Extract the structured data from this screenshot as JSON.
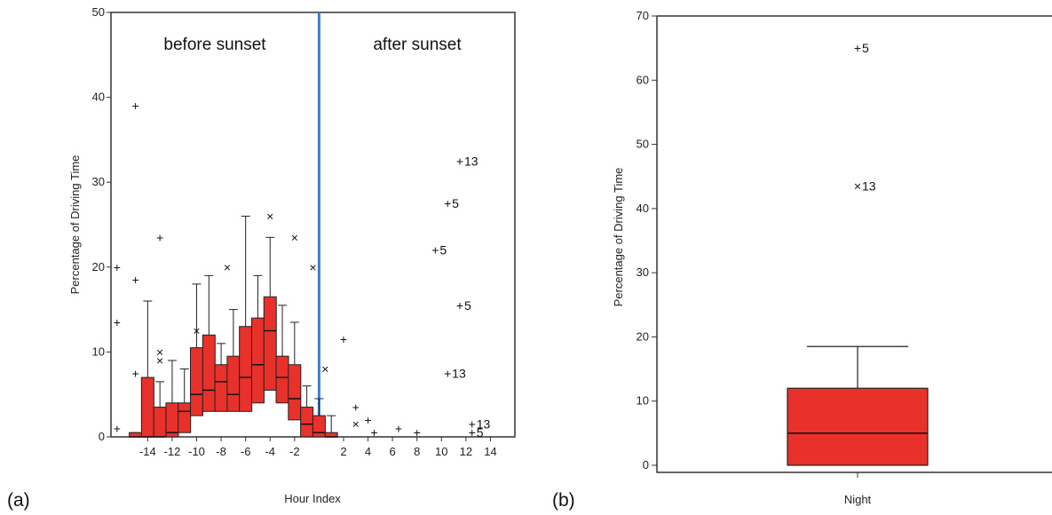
{
  "colors": {
    "box_fill": "#e8312a",
    "divider": "#3b7fd0",
    "ink": "#111111"
  },
  "panels": {
    "a": "(a)",
    "b": "(b)"
  },
  "chart_data": [
    {
      "type": "box",
      "xlabel": "Hour Index",
      "ylabel": "Percentage of Driving Time",
      "ylim": [
        0,
        50
      ],
      "yticks": [
        0,
        10,
        20,
        30,
        40,
        50
      ],
      "xlim": [
        -17,
        16
      ],
      "xticks": [
        -14,
        -12,
        -10,
        -8,
        -6,
        -4,
        -2,
        2,
        4,
        6,
        8,
        10,
        12,
        14
      ],
      "divider_x": 0,
      "regions": [
        "before sunset",
        "after sunset"
      ],
      "boxes": [
        {
          "x": -15,
          "q1": 0,
          "med": 0,
          "q3": 0.5,
          "wlo": 0,
          "whi": 0.5
        },
        {
          "x": -14,
          "q1": 0,
          "med": 0,
          "q3": 7,
          "wlo": 0,
          "whi": 16
        },
        {
          "x": -13,
          "q1": 0,
          "med": 0,
          "q3": 3.5,
          "wlo": 0,
          "whi": 6.5
        },
        {
          "x": -12,
          "q1": 0,
          "med": 0.5,
          "q3": 4,
          "wlo": 0,
          "whi": 9
        },
        {
          "x": -11,
          "q1": 0.5,
          "med": 3,
          "q3": 4,
          "wlo": 0,
          "whi": 8
        },
        {
          "x": -10,
          "q1": 2.5,
          "med": 5,
          "q3": 10.5,
          "wlo": 0,
          "whi": 18
        },
        {
          "x": -9,
          "q1": 3,
          "med": 5.5,
          "q3": 12,
          "wlo": 0,
          "whi": 19
        },
        {
          "x": -8,
          "q1": 3,
          "med": 6.5,
          "q3": 8.5,
          "wlo": 0,
          "whi": 11
        },
        {
          "x": -7,
          "q1": 3,
          "med": 5,
          "q3": 9.5,
          "wlo": 0,
          "whi": 15
        },
        {
          "x": -6,
          "q1": 3,
          "med": 7,
          "q3": 13,
          "wlo": 0,
          "whi": 26
        },
        {
          "x": -5,
          "q1": 4,
          "med": 8.5,
          "q3": 14,
          "wlo": 0,
          "whi": 19
        },
        {
          "x": -4,
          "q1": 5.5,
          "med": 12.5,
          "q3": 16.5,
          "wlo": 0,
          "whi": 23.5
        },
        {
          "x": -3,
          "q1": 4,
          "med": 7,
          "q3": 9.5,
          "wlo": 0,
          "whi": 15.5
        },
        {
          "x": -2,
          "q1": 2,
          "med": 4.5,
          "q3": 8.5,
          "wlo": 0,
          "whi": 13.5
        },
        {
          "x": -1,
          "q1": 0,
          "med": 1.5,
          "q3": 3.5,
          "wlo": 0,
          "whi": 6
        },
        {
          "x": 0,
          "q1": 0,
          "med": 0.5,
          "q3": 2.5,
          "wlo": 0,
          "whi": 4.5
        },
        {
          "x": 1,
          "q1": 0,
          "med": 0,
          "q3": 0.5,
          "wlo": 0,
          "whi": 2.5
        }
      ],
      "outliers": [
        {
          "x": -16.5,
          "y": 20,
          "m": "+",
          "t": ""
        },
        {
          "x": -16.5,
          "y": 13.5,
          "m": "+",
          "t": ""
        },
        {
          "x": -16.5,
          "y": 1,
          "m": "+",
          "t": ""
        },
        {
          "x": -15,
          "y": 39,
          "m": "+",
          "t": ""
        },
        {
          "x": -15,
          "y": 18.5,
          "m": "+",
          "t": ""
        },
        {
          "x": -15,
          "y": 7.5,
          "m": "+",
          "t": ""
        },
        {
          "x": -13,
          "y": 23.5,
          "m": "+",
          "t": ""
        },
        {
          "x": -13,
          "y": 10,
          "m": "x",
          "t": ""
        },
        {
          "x": -13,
          "y": 9,
          "m": "x",
          "t": ""
        },
        {
          "x": -10,
          "y": 12.5,
          "m": "x",
          "t": ""
        },
        {
          "x": -7.5,
          "y": 20,
          "m": "x",
          "t": ""
        },
        {
          "x": -4,
          "y": 26,
          "m": "x",
          "t": ""
        },
        {
          "x": -2,
          "y": 23.5,
          "m": "x",
          "t": ""
        },
        {
          "x": -0.5,
          "y": 20,
          "m": "x",
          "t": ""
        },
        {
          "x": 0.5,
          "y": 8,
          "m": "x",
          "t": ""
        },
        {
          "x": 2,
          "y": 11.5,
          "m": "+",
          "t": ""
        },
        {
          "x": 3,
          "y": 3.5,
          "m": "+",
          "t": ""
        },
        {
          "x": 3,
          "y": 1.5,
          "m": "x",
          "t": ""
        },
        {
          "x": 4,
          "y": 2,
          "m": "+",
          "t": ""
        },
        {
          "x": 4.5,
          "y": 0.5,
          "m": "+",
          "t": ""
        },
        {
          "x": 6.5,
          "y": 1,
          "m": "+",
          "t": ""
        },
        {
          "x": 8,
          "y": 0.5,
          "m": "+",
          "t": ""
        },
        {
          "x": 9.5,
          "y": 22,
          "m": "+",
          "t": "5"
        },
        {
          "x": 10.5,
          "y": 27.5,
          "m": "+",
          "t": "5"
        },
        {
          "x": 11.5,
          "y": 32.5,
          "m": "+",
          "t": "13"
        },
        {
          "x": 11.5,
          "y": 15.5,
          "m": "+",
          "t": "5"
        },
        {
          "x": 10.5,
          "y": 7.5,
          "m": "+",
          "t": "13"
        },
        {
          "x": 12.5,
          "y": 1.5,
          "m": "+",
          "t": "13"
        },
        {
          "x": 12.5,
          "y": 0.5,
          "m": "+",
          "t": "5"
        }
      ]
    },
    {
      "type": "box",
      "categories": [
        "Night"
      ],
      "ylabel": "Percentage of Driving Time",
      "ylim": [
        0,
        70
      ],
      "yticks": [
        0,
        10,
        20,
        30,
        40,
        50,
        60,
        70
      ],
      "boxes": [
        {
          "x": "Night",
          "q1": 0,
          "med": 5,
          "q3": 12,
          "wlo": 0,
          "whi": 18.5
        }
      ],
      "outliers": [
        {
          "y": 65,
          "m": "+",
          "t": "5"
        },
        {
          "y": 43.5,
          "m": "x",
          "t": "13"
        }
      ]
    }
  ]
}
